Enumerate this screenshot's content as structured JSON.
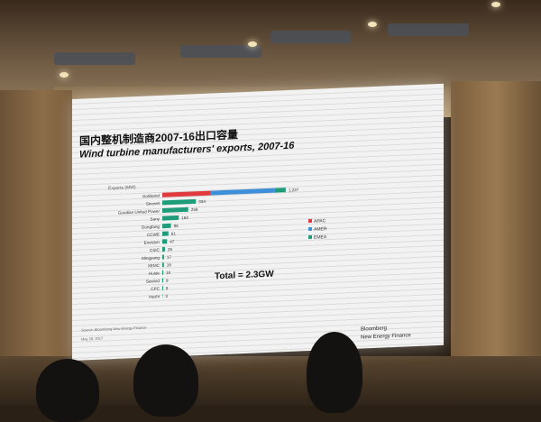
{
  "slide": {
    "title_cn": "国内整机制造商2007-16出口容量",
    "title_en": "Wind turbine manufacturers' exports, 2007-16",
    "total": "Total = 2.3GW",
    "source": "Source: Bloomberg New Energy Finance",
    "footer_small": "May 26, 2017",
    "brand_line1": "Bloomberg",
    "brand_line2": "New Energy Finance"
  },
  "chart_data": {
    "type": "bar",
    "orientation": "horizontal",
    "stacked": true,
    "title": "Wind turbine manufacturers' exports, 2007-16",
    "xlabel": "Exports (MW)",
    "ylabel": "",
    "legend_position": "right",
    "categories": [
      "Goldwind",
      "Sinovel",
      "Guodian United Power",
      "Sany",
      "Dongfang",
      "CCWE",
      "Envision",
      "CSIC",
      "Mingyang",
      "XEMC",
      "Huide",
      "Sewind",
      "CPC",
      "Hezhi"
    ],
    "totals": [
      1227,
      334,
      258,
      163,
      86,
      61,
      47,
      26,
      17,
      16,
      10,
      9,
      8,
      3
    ],
    "series": [
      {
        "name": "APAC",
        "color": "#e0393e",
        "values": [
          480,
          0,
          0,
          0,
          0,
          0,
          0,
          0,
          0,
          0,
          0,
          0,
          0,
          0
        ]
      },
      {
        "name": "AMER",
        "color": "#3d8fd8",
        "values": [
          640,
          0,
          0,
          0,
          0,
          0,
          0,
          0,
          0,
          0,
          0,
          0,
          0,
          0
        ]
      },
      {
        "name": "EMEA",
        "color": "#1f9c7a",
        "values": [
          107,
          334,
          258,
          163,
          86,
          61,
          47,
          26,
          17,
          16,
          10,
          9,
          8,
          3
        ]
      }
    ],
    "xlim": [
      0,
      1300
    ]
  }
}
